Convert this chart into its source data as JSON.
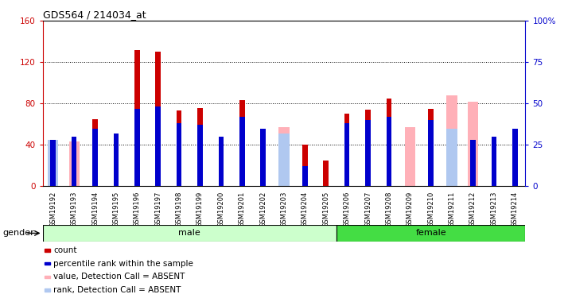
{
  "title": "GDS564 / 214034_at",
  "samples": [
    "GSM19192",
    "GSM19193",
    "GSM19194",
    "GSM19195",
    "GSM19196",
    "GSM19197",
    "GSM19198",
    "GSM19199",
    "GSM19200",
    "GSM19201",
    "GSM19202",
    "GSM19203",
    "GSM19204",
    "GSM19205",
    "GSM19206",
    "GSM19207",
    "GSM19208",
    "GSM19209",
    "GSM19210",
    "GSM19211",
    "GSM19212",
    "GSM19213",
    "GSM19214"
  ],
  "count": [
    0,
    0,
    65,
    47,
    132,
    130,
    73,
    76,
    40,
    83,
    47,
    0,
    40,
    25,
    70,
    74,
    85,
    0,
    75,
    0,
    0,
    40,
    45
  ],
  "percentile_rank": [
    28,
    30,
    35,
    32,
    47,
    48,
    38,
    37,
    30,
    42,
    35,
    0,
    12,
    0,
    38,
    40,
    42,
    0,
    40,
    0,
    28,
    30,
    35
  ],
  "absent_value": [
    43,
    43,
    0,
    0,
    0,
    0,
    0,
    0,
    0,
    0,
    0,
    57,
    0,
    0,
    0,
    0,
    0,
    57,
    0,
    88,
    82,
    0,
    0
  ],
  "absent_rank": [
    28,
    0,
    0,
    0,
    0,
    0,
    0,
    0,
    0,
    0,
    0,
    32,
    0,
    0,
    0,
    0,
    0,
    0,
    0,
    35,
    0,
    0,
    0
  ],
  "gender": [
    "male",
    "male",
    "male",
    "male",
    "male",
    "male",
    "male",
    "male",
    "male",
    "male",
    "male",
    "male",
    "male",
    "male",
    "female",
    "female",
    "female",
    "female",
    "female",
    "female",
    "female",
    "female",
    "female"
  ],
  "ylim_left": [
    0,
    160
  ],
  "ylim_right": [
    0,
    100
  ],
  "yticks_left": [
    0,
    40,
    80,
    120,
    160
  ],
  "yticks_right": [
    0,
    25,
    50,
    75,
    100
  ],
  "ytick_labels_right": [
    "0",
    "25",
    "50",
    "75",
    "100%"
  ],
  "color_count": "#cc0000",
  "color_rank": "#0000cc",
  "color_absent_value": "#ffb0b8",
  "color_absent_rank": "#b0c8f0",
  "bg_color": "#ffffff",
  "bar_width": 0.5,
  "narrow_bar_width": 0.25,
  "gender_label": "gender",
  "male_label": "male",
  "female_label": "female",
  "male_color": "#ccffcc",
  "female_color": "#44dd44",
  "legend_entries": [
    "count",
    "percentile rank within the sample",
    "value, Detection Call = ABSENT",
    "rank, Detection Call = ABSENT"
  ]
}
